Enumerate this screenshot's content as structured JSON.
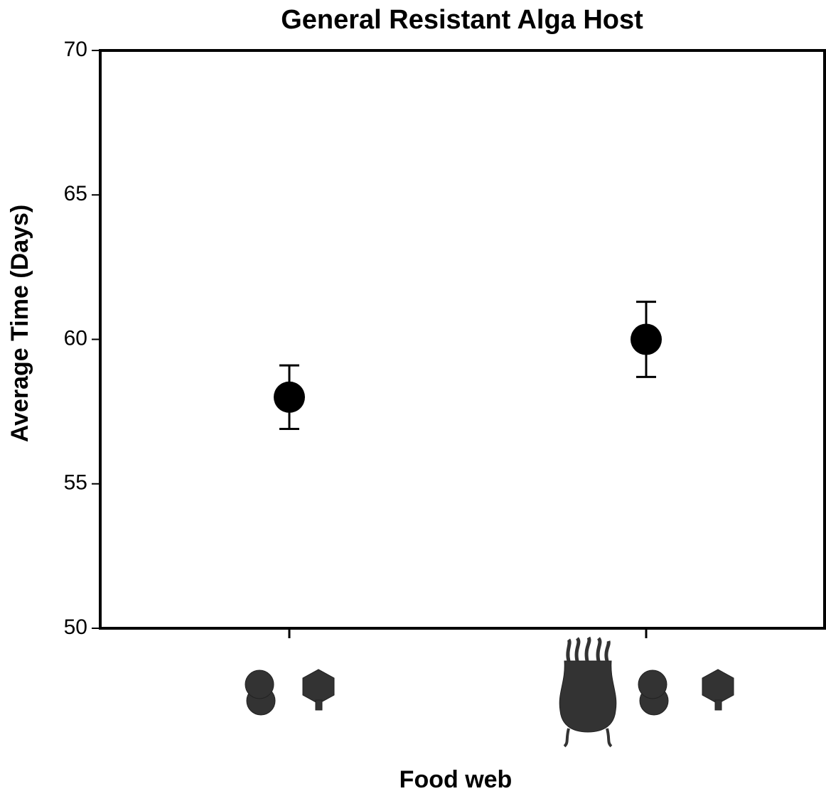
{
  "chart_data": {
    "type": "errorpoint",
    "title": "General Resistant Alga Host",
    "x_label": "Food web",
    "y_label": "Average Time (Days)",
    "categories": [
      null,
      null
    ],
    "values": [
      58,
      60
    ],
    "errors": [
      1.1,
      1.3
    ],
    "color": "#000000",
    "ylim": [
      50,
      70
    ],
    "yticks": [
      50,
      55,
      60,
      65,
      70
    ],
    "grid": false
  }
}
